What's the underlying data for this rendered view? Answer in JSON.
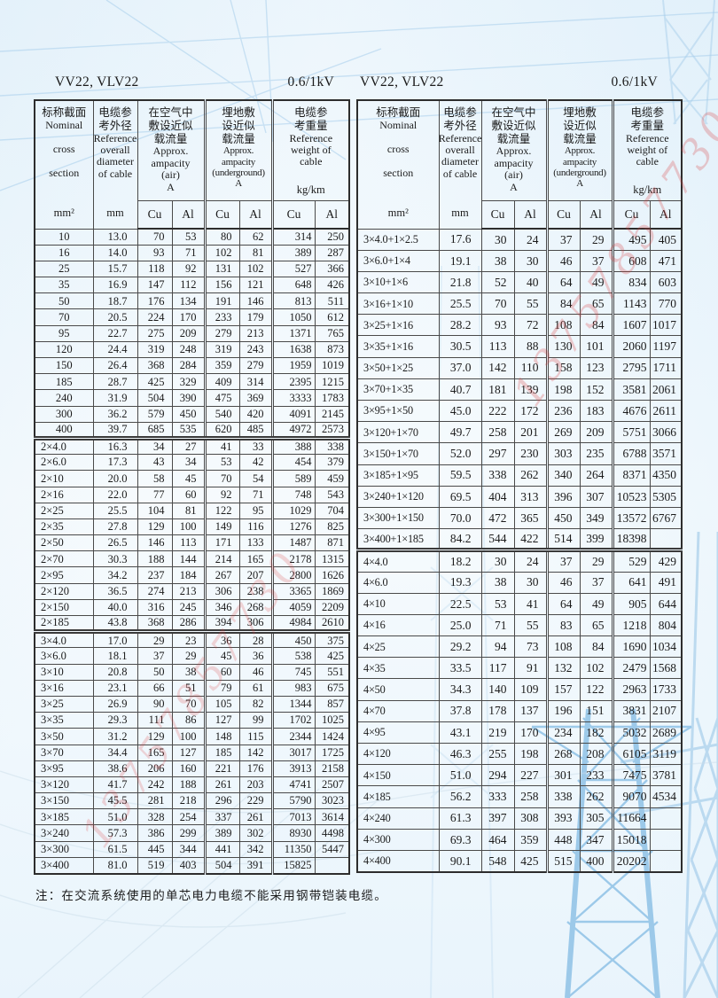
{
  "page": {
    "model_label": "VV22, VLV22",
    "voltage_label": "0.6/1kV",
    "note": "注：在交流系统使用的单芯电力电缆不能采用钢带铠装电缆。",
    "watermark_text": "13757857730"
  },
  "header": {
    "nominal_zh": "标称截面",
    "nominal_en": "Nominal\n\ncross\n\nsection",
    "nominal_unit": "mm²",
    "diameter_zh": "电缆参\n考外径",
    "diameter_en": "Reference\noverall\ndiameter\nof cable",
    "diameter_unit": "mm",
    "air_zh": "在空气中\n敷设近似\n载流量",
    "air_en": "Approx.\nampacity\n(air)\nA",
    "underground_zh": "埋地敷\n设近似\n载流量",
    "underground_en": "Approx.\nampacity\n(underground)\nA",
    "weight_zh": "电缆参\n考重量",
    "weight_en": "Reference\nweight of\ncable",
    "weight_unit": "kg/km",
    "cu": "Cu",
    "al": "Al"
  },
  "tables": [
    {
      "blocks": [
        {
          "rows": [
            [
              "10",
              "13.0",
              "70",
              "53",
              "80",
              "62",
              "314",
              "250"
            ],
            [
              "16",
              "14.0",
              "93",
              "71",
              "102",
              "81",
              "389",
              "287"
            ],
            [
              "25",
              "15.7",
              "118",
              "92",
              "131",
              "102",
              "527",
              "366"
            ],
            [
              "35",
              "16.9",
              "147",
              "112",
              "156",
              "121",
              "648",
              "426"
            ],
            [
              "50",
              "18.7",
              "176",
              "134",
              "191",
              "146",
              "813",
              "511"
            ],
            [
              "70",
              "20.5",
              "224",
              "170",
              "233",
              "179",
              "1050",
              "612"
            ],
            [
              "95",
              "22.7",
              "275",
              "209",
              "279",
              "213",
              "1371",
              "765"
            ],
            [
              "120",
              "24.4",
              "319",
              "248",
              "319",
              "243",
              "1638",
              "873"
            ],
            [
              "150",
              "26.4",
              "368",
              "284",
              "359",
              "279",
              "1959",
              "1019"
            ],
            [
              "185",
              "28.7",
              "425",
              "329",
              "409",
              "314",
              "2395",
              "1215"
            ],
            [
              "240",
              "31.9",
              "504",
              "390",
              "475",
              "369",
              "3333",
              "1783"
            ],
            [
              "300",
              "36.2",
              "579",
              "450",
              "540",
              "420",
              "4091",
              "2145"
            ],
            [
              "400",
              "39.7",
              "685",
              "535",
              "620",
              "485",
              "4972",
              "2573"
            ]
          ]
        },
        {
          "rows": [
            [
              "2×4.0",
              "16.3",
              "34",
              "27",
              "41",
              "33",
              "388",
              "338"
            ],
            [
              "2×6.0",
              "17.3",
              "43",
              "34",
              "53",
              "42",
              "454",
              "379"
            ],
            [
              "2×10",
              "20.0",
              "58",
              "45",
              "70",
              "54",
              "589",
              "459"
            ],
            [
              "2×16",
              "22.0",
              "77",
              "60",
              "92",
              "71",
              "748",
              "543"
            ],
            [
              "2×25",
              "25.5",
              "104",
              "81",
              "122",
              "95",
              "1029",
              "704"
            ],
            [
              "2×35",
              "27.8",
              "129",
              "100",
              "149",
              "116",
              "1276",
              "825"
            ],
            [
              "2×50",
              "26.5",
              "146",
              "113",
              "171",
              "133",
              "1487",
              "871"
            ],
            [
              "2×70",
              "30.3",
              "188",
              "144",
              "214",
              "165",
              "2178",
              "1315"
            ],
            [
              "2×95",
              "34.2",
              "237",
              "184",
              "267",
              "207",
              "2800",
              "1626"
            ],
            [
              "2×120",
              "36.5",
              "274",
              "213",
              "306",
              "238",
              "3365",
              "1869"
            ],
            [
              "2×150",
              "40.0",
              "316",
              "245",
              "346",
              "268",
              "4059",
              "2209"
            ],
            [
              "2×185",
              "43.8",
              "368",
              "286",
              "394",
              "306",
              "4984",
              "2610"
            ]
          ]
        },
        {
          "rows": [
            [
              "3×4.0",
              "17.0",
              "29",
              "23",
              "36",
              "28",
              "450",
              "375"
            ],
            [
              "3×6.0",
              "18.1",
              "37",
              "29",
              "45",
              "36",
              "538",
              "425"
            ],
            [
              "3×10",
              "20.8",
              "50",
              "38",
              "60",
              "46",
              "745",
              "551"
            ],
            [
              "3×16",
              "23.1",
              "66",
              "51",
              "79",
              "61",
              "983",
              "675"
            ],
            [
              "3×25",
              "26.9",
              "90",
              "70",
              "105",
              "82",
              "1344",
              "857"
            ],
            [
              "3×35",
              "29.3",
              "111",
              "86",
              "127",
              "99",
              "1702",
              "1025"
            ],
            [
              "3×50",
              "31.2",
              "129",
              "100",
              "148",
              "115",
              "2344",
              "1424"
            ],
            [
              "3×70",
              "34.4",
              "165",
              "127",
              "185",
              "142",
              "3017",
              "1725"
            ],
            [
              "3×95",
              "38.6",
              "206",
              "160",
              "221",
              "176",
              "3913",
              "2158"
            ],
            [
              "3×120",
              "41.7",
              "242",
              "188",
              "261",
              "203",
              "4741",
              "2507"
            ],
            [
              "3×150",
              "45.5",
              "281",
              "218",
              "296",
              "229",
              "5790",
              "3023"
            ],
            [
              "3×185",
              "51.0",
              "328",
              "254",
              "337",
              "261",
              "7013",
              "3614"
            ],
            [
              "3×240",
              "57.3",
              "386",
              "299",
              "389",
              "302",
              "8930",
              "4498"
            ],
            [
              "3×300",
              "61.5",
              "445",
              "344",
              "441",
              "342",
              "11350",
              "5447"
            ],
            [
              "3×400",
              "81.0",
              "519",
              "403",
              "504",
              "391",
              "15825",
              ""
            ]
          ]
        }
      ]
    },
    {
      "blocks": [
        {
          "rows": [
            [
              "3×4.0+1×2.5",
              "17.6",
              "30",
              "24",
              "37",
              "29",
              "495",
              "405"
            ],
            [
              "3×6.0+1×4",
              "19.1",
              "38",
              "30",
              "46",
              "37",
              "608",
              "471"
            ],
            [
              "3×10+1×6",
              "21.8",
              "52",
              "40",
              "64",
              "49",
              "834",
              "603"
            ],
            [
              "3×16+1×10",
              "25.5",
              "70",
              "55",
              "84",
              "65",
              "1143",
              "770"
            ],
            [
              "3×25+1×16",
              "28.2",
              "93",
              "72",
              "108",
              "84",
              "1607",
              "1017"
            ],
            [
              "3×35+1×16",
              "30.5",
              "113",
              "88",
              "130",
              "101",
              "2060",
              "1197"
            ],
            [
              "3×50+1×25",
              "37.0",
              "142",
              "110",
              "158",
              "123",
              "2795",
              "1711"
            ],
            [
              "3×70+1×35",
              "40.7",
              "181",
              "139",
              "198",
              "152",
              "3581",
              "2061"
            ],
            [
              "3×95+1×50",
              "45.0",
              "222",
              "172",
              "236",
              "183",
              "4676",
              "2611"
            ],
            [
              "3×120+1×70",
              "49.7",
              "258",
              "201",
              "269",
              "209",
              "5751",
              "3066"
            ],
            [
              "3×150+1×70",
              "52.0",
              "297",
              "230",
              "303",
              "235",
              "6788",
              "3571"
            ],
            [
              "3×185+1×95",
              "59.5",
              "338",
              "262",
              "340",
              "264",
              "8371",
              "4350"
            ],
            [
              "3×240+1×120",
              "69.5",
              "404",
              "313",
              "396",
              "307",
              "10523",
              "5305"
            ],
            [
              "3×300+1×150",
              "70.0",
              "472",
              "365",
              "450",
              "349",
              "13572",
              "6767"
            ],
            [
              "3×400+1×185",
              "84.2",
              "544",
              "422",
              "514",
              "399",
              "18398",
              ""
            ]
          ]
        },
        {
          "rows": [
            [
              "4×4.0",
              "18.2",
              "30",
              "24",
              "37",
              "29",
              "529",
              "429"
            ],
            [
              "4×6.0",
              "19.3",
              "38",
              "30",
              "46",
              "37",
              "641",
              "491"
            ],
            [
              "4×10",
              "22.5",
              "53",
              "41",
              "64",
              "49",
              "905",
              "644"
            ],
            [
              "4×16",
              "25.0",
              "71",
              "55",
              "83",
              "65",
              "1218",
              "804"
            ],
            [
              "4×25",
              "29.2",
              "94",
              "73",
              "108",
              "84",
              "1690",
              "1034"
            ],
            [
              "4×35",
              "33.5",
              "117",
              "91",
              "132",
              "102",
              "2479",
              "1568"
            ],
            [
              "4×50",
              "34.3",
              "140",
              "109",
              "157",
              "122",
              "2963",
              "1733"
            ],
            [
              "4×70",
              "37.8",
              "178",
              "137",
              "196",
              "151",
              "3831",
              "2107"
            ],
            [
              "4×95",
              "43.1",
              "219",
              "170",
              "234",
              "182",
              "5032",
              "2689"
            ],
            [
              "4×120",
              "46.3",
              "255",
              "198",
              "268",
              "208",
              "6105",
              "3119"
            ],
            [
              "4×150",
              "51.0",
              "294",
              "227",
              "301",
              "233",
              "7475",
              "3781"
            ],
            [
              "4×185",
              "56.2",
              "333",
              "258",
              "338",
              "262",
              "9070",
              "4534"
            ],
            [
              "4×240",
              "61.3",
              "397",
              "308",
              "393",
              "305",
              "11664",
              ""
            ],
            [
              "4×300",
              "69.3",
              "464",
              "359",
              "448",
              "347",
              "15018",
              ""
            ],
            [
              "4×400",
              "90.1",
              "548",
              "425",
              "515",
              "400",
              "20202",
              ""
            ]
          ]
        }
      ]
    }
  ]
}
